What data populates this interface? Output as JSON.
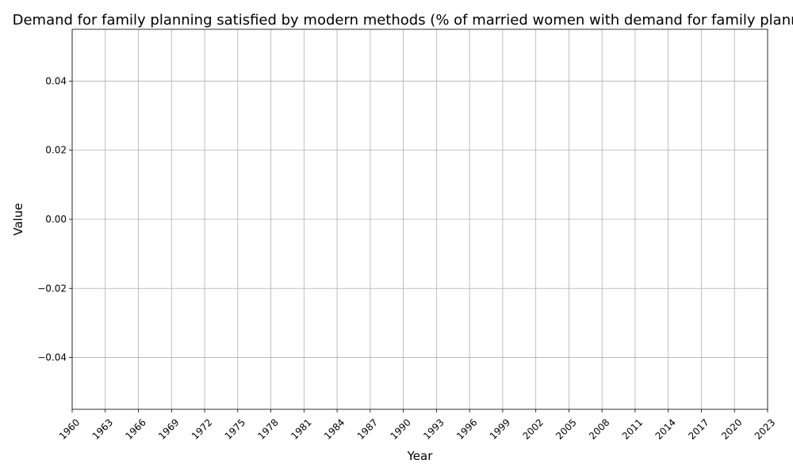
{
  "chart_data": {
    "type": "line",
    "title": "Demand for family planning satisfied by modern methods (% of married women with demand for family planning)",
    "xlabel": "Year",
    "ylabel": "Value",
    "x_ticks": [
      1960,
      1963,
      1966,
      1969,
      1972,
      1975,
      1978,
      1981,
      1984,
      1987,
      1990,
      1993,
      1996,
      1999,
      2002,
      2005,
      2008,
      2011,
      2014,
      2017,
      2020,
      2023
    ],
    "y_ticks": [
      "−0.04",
      "−0.02",
      "0.00",
      "0.02",
      "0.04"
    ],
    "y_tick_values": [
      -0.04,
      -0.02,
      0.0,
      0.02,
      0.04
    ],
    "xlim": [
      1960,
      2023
    ],
    "ylim": [
      -0.055,
      0.055
    ],
    "grid": true,
    "series": []
  }
}
